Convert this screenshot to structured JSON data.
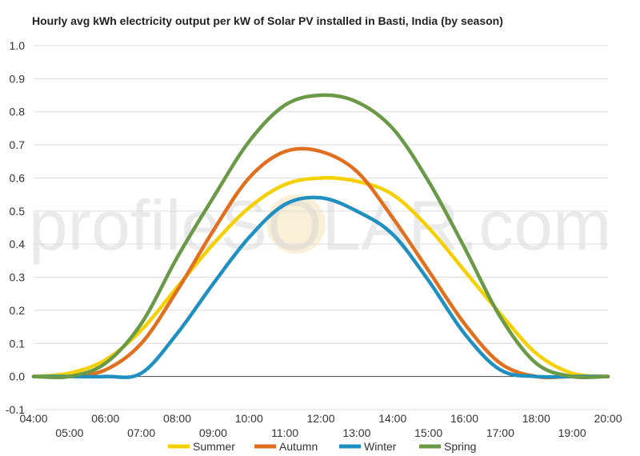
{
  "chart_data": {
    "type": "line",
    "title": "Hourly avg kWh electricity output per kW of Solar PV installed in Basti, India (by season)",
    "xlabel": "",
    "ylabel": "",
    "x_ticks_upper": [
      "04:00",
      "06:00",
      "08:00",
      "10:00",
      "12:00",
      "14:00",
      "16:00",
      "18:00",
      "20:00"
    ],
    "x_ticks_lower": [
      "05:00",
      "07:00",
      "09:00",
      "11:00",
      "13:00",
      "15:00",
      "17:00",
      "19:00"
    ],
    "y_ticks": [
      "1.0",
      "0.9",
      "0.8",
      "0.7",
      "0.6",
      "0.5",
      "0.4",
      "0.3",
      "0.2",
      "0.1",
      "0.0",
      "-0.1"
    ],
    "ylim": [
      -0.1,
      1.0
    ],
    "xlim": [
      4,
      20
    ],
    "grid": true,
    "legend_position": "bottom",
    "watermark": "profileSOLAR.com",
    "x": [
      4,
      5,
      6,
      7,
      8,
      9,
      10,
      11,
      12,
      13,
      14,
      15,
      16,
      17,
      18,
      19,
      20
    ],
    "series": [
      {
        "name": "Summer",
        "color": "#f5d000",
        "values": [
          0.0,
          0.01,
          0.05,
          0.14,
          0.27,
          0.4,
          0.51,
          0.58,
          0.6,
          0.59,
          0.55,
          0.45,
          0.32,
          0.19,
          0.07,
          0.01,
          0.0
        ]
      },
      {
        "name": "Autumn",
        "color": "#e07020",
        "values": [
          0.0,
          0.0,
          0.02,
          0.1,
          0.26,
          0.44,
          0.6,
          0.68,
          0.68,
          0.62,
          0.48,
          0.32,
          0.16,
          0.04,
          0.0,
          0.0,
          0.0
        ]
      },
      {
        "name": "Winter",
        "color": "#2090c0",
        "values": [
          0.0,
          0.0,
          0.0,
          0.01,
          0.13,
          0.28,
          0.42,
          0.52,
          0.54,
          0.5,
          0.43,
          0.29,
          0.13,
          0.02,
          0.0,
          0.0,
          0.0
        ]
      },
      {
        "name": "Spring",
        "color": "#6a9a48",
        "values": [
          0.0,
          0.0,
          0.04,
          0.16,
          0.36,
          0.54,
          0.71,
          0.82,
          0.85,
          0.83,
          0.75,
          0.59,
          0.39,
          0.18,
          0.04,
          0.0,
          0.0
        ]
      }
    ]
  }
}
